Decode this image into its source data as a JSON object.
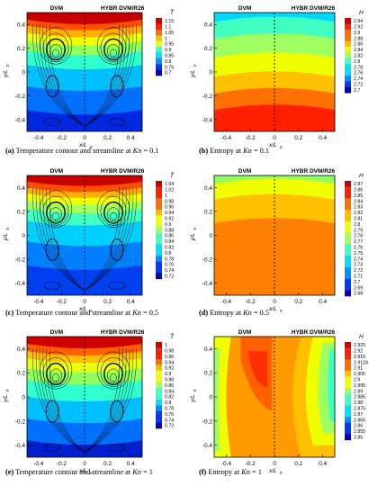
{
  "figure": {
    "panels": [
      {
        "id": "a",
        "type": "temperature",
        "left_label": "DVM",
        "right_label": "HYBR DVM/R26",
        "colorbar_title": "T̄",
        "colorbar_ticks": [
          "1.15",
          "1.1",
          "1.05",
          "1",
          "0.95",
          "0.9",
          "0.85",
          "0.8",
          "0.75",
          "0.7"
        ],
        "caption_tag": "(a)",
        "caption_text": " Temperature contour and streamline at ",
        "caption_var": "Kn",
        "caption_val": " = 0.1"
      },
      {
        "id": "b",
        "type": "entropy",
        "left_label": "DVM",
        "right_label": "HYBR DVM/R26",
        "colorbar_title": "H",
        "colorbar_ticks": [
          "2.94",
          "2.92",
          "2.9",
          "2.88",
          "2.86",
          "2.84",
          "2.82",
          "2.8",
          "2.78",
          "2.76",
          "2.74",
          "2.72",
          "2.7"
        ],
        "caption_tag": "(b)",
        "caption_text": " Entropy at ",
        "caption_var": "Kn",
        "caption_val": " = 0.1"
      },
      {
        "id": "c",
        "type": "temperature",
        "left_label": "DVM",
        "right_label": "HYBR DVM/R26",
        "colorbar_title": "T̄",
        "colorbar_ticks": [
          "1.04",
          "1.02",
          "1",
          "0.98",
          "0.96",
          "0.94",
          "0.92",
          "0.9",
          "0.88",
          "0.86",
          "0.84",
          "0.82",
          "0.8",
          "0.78",
          "0.76",
          "0.74",
          "0.72"
        ],
        "caption_tag": "(c)",
        "caption_text": " Temperature contour and streamline at ",
        "caption_var": "Kn",
        "caption_val": " = 0.5"
      },
      {
        "id": "d",
        "type": "entropy",
        "left_label": "DVM",
        "right_label": "HYBR DVM/R26",
        "colorbar_title": "H",
        "colorbar_ticks": [
          "2.87",
          "2.86",
          "2.85",
          "2.84",
          "2.83",
          "2.82",
          "2.81",
          "2.8",
          "2.79",
          "2.78",
          "2.77",
          "2.76",
          "2.75",
          "2.74",
          "2.73",
          "2.72",
          "2.71",
          "2.7",
          "2.69",
          "2.68"
        ],
        "caption_tag": "(d)",
        "caption_text": " Entropy at ",
        "caption_var": "Kn",
        "caption_val": " = 0.5"
      },
      {
        "id": "e",
        "type": "temperature",
        "left_label": "DVM",
        "right_label": "HYBR DVM/R26",
        "colorbar_title": "T̄",
        "colorbar_ticks": [
          "1",
          "0.98",
          "0.96",
          "0.94",
          "0.92",
          "0.9",
          "0.88",
          "0.86",
          "0.84",
          "0.82",
          "0.8",
          "0.78",
          "0.76",
          "0.74",
          "0.72"
        ],
        "caption_tag": "(e)",
        "caption_text": " Temperature contour and streamline at ",
        "caption_var": "Kn",
        "caption_val": " = 1"
      },
      {
        "id": "f",
        "type": "entropy_f",
        "left_label": "DVM",
        "right_label": "HYBR DVM/R26",
        "colorbar_title": "H",
        "colorbar_ticks": [
          "2.925",
          "2.92",
          "2.915",
          "2.9124",
          "2.91",
          "2.905",
          "2.9",
          "2.895",
          "2.89",
          "2.885",
          "2.88",
          "2.875",
          "2.87",
          "2.865",
          "2.86",
          "2.855",
          "2.85"
        ],
        "caption_tag": "(f)",
        "caption_text": " Entropy at ",
        "caption_var": "Kn",
        "caption_val": " = 1"
      }
    ],
    "x_ticks": [
      "-0.4",
      "-0.2",
      "0",
      "0.2",
      "0.4"
    ],
    "y_ticks": [
      "0.4",
      "0.2",
      "0",
      "-0.2",
      "-0.4"
    ],
    "x_label": "x/L",
    "x_label_sub": "0",
    "y_label": "y/L",
    "y_label_sub": "0"
  }
}
